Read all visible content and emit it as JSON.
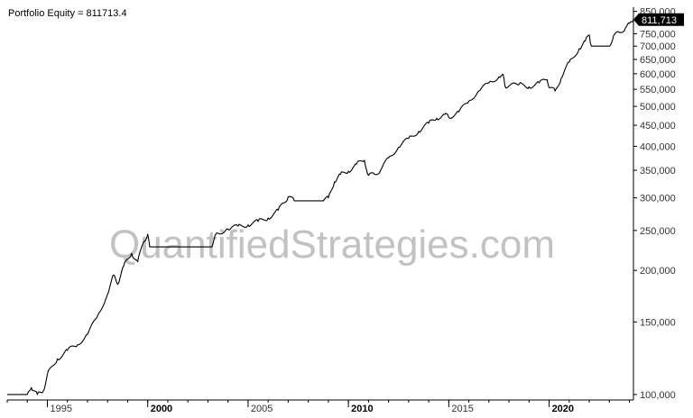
{
  "chart_data": {
    "type": "line",
    "title": "Portfolio Equity = 811713.4",
    "xlabel": "",
    "ylabel": "",
    "y_scale": "log",
    "ylim": [
      97000,
      870000
    ],
    "xlim": [
      1993.0,
      2024.2
    ],
    "x_ticks": [
      {
        "year": 1995,
        "label": "1995",
        "bold": false
      },
      {
        "year": 2000,
        "label": "2000",
        "bold": true
      },
      {
        "year": 2005,
        "label": "2005",
        "bold": false
      },
      {
        "year": 2010,
        "label": "2010",
        "bold": true
      },
      {
        "year": 2015,
        "label": "2015",
        "bold": false
      },
      {
        "year": 2020,
        "label": "2020",
        "bold": true
      }
    ],
    "y_ticks": [
      {
        "value": 100000,
        "label": "100,000"
      },
      {
        "value": 150000,
        "label": "150,000"
      },
      {
        "value": 200000,
        "label": "200,000"
      },
      {
        "value": 250000,
        "label": "250,000"
      },
      {
        "value": 300000,
        "label": "300,000"
      },
      {
        "value": 350000,
        "label": "350,000"
      },
      {
        "value": 400000,
        "label": "400,000"
      },
      {
        "value": 450000,
        "label": "450,000"
      },
      {
        "value": 500000,
        "label": "500,000"
      },
      {
        "value": 550000,
        "label": "550,000"
      },
      {
        "value": 600000,
        "label": "600,000"
      },
      {
        "value": 650000,
        "label": "650,000"
      },
      {
        "value": 700000,
        "label": "700,000"
      },
      {
        "value": 750000,
        "label": "750,000"
      },
      {
        "value": 850000,
        "label": "850,000"
      }
    ],
    "last_value": 811713.4,
    "last_value_label": "811,713",
    "series": [
      {
        "values": [
          [
            1993.0,
            100000
          ],
          [
            1993.6,
            100000
          ],
          [
            1994.0,
            100000
          ],
          [
            1994.2,
            104000
          ],
          [
            1994.5,
            100000
          ],
          [
            1994.8,
            102000
          ],
          [
            1995.0,
            112000
          ],
          [
            1995.5,
            122000
          ],
          [
            1996.0,
            128000
          ],
          [
            1996.5,
            132000
          ],
          [
            1997.0,
            140000
          ],
          [
            1997.5,
            155000
          ],
          [
            1998.0,
            175000
          ],
          [
            1998.3,
            195000
          ],
          [
            1998.5,
            185000
          ],
          [
            1998.8,
            205000
          ],
          [
            1999.2,
            220000
          ],
          [
            1999.5,
            210000
          ],
          [
            1999.8,
            235000
          ],
          [
            2000.0,
            245000
          ],
          [
            2000.1,
            228000
          ],
          [
            2003.2,
            228000
          ],
          [
            2003.4,
            245000
          ],
          [
            2004.0,
            252000
          ],
          [
            2004.5,
            256000
          ],
          [
            2005.0,
            258000
          ],
          [
            2005.5,
            263000
          ],
          [
            2006.0,
            268000
          ],
          [
            2006.5,
            280000
          ],
          [
            2006.8,
            292000
          ],
          [
            2007.0,
            302000
          ],
          [
            2007.3,
            295000
          ],
          [
            2008.7,
            295000
          ],
          [
            2009.0,
            300000
          ],
          [
            2009.3,
            328000
          ],
          [
            2009.6,
            342000
          ],
          [
            2010.0,
            348000
          ],
          [
            2010.4,
            362000
          ],
          [
            2010.8,
            370000
          ],
          [
            2011.0,
            340000
          ],
          [
            2011.3,
            342000
          ],
          [
            2011.6,
            350000
          ],
          [
            2012.0,
            375000
          ],
          [
            2012.5,
            398000
          ],
          [
            2013.0,
            418000
          ],
          [
            2013.5,
            435000
          ],
          [
            2014.0,
            455000
          ],
          [
            2014.4,
            468000
          ],
          [
            2014.8,
            478000
          ],
          [
            2015.0,
            470000
          ],
          [
            2015.5,
            485000
          ],
          [
            2016.0,
            515000
          ],
          [
            2016.5,
            545000
          ],
          [
            2017.0,
            570000
          ],
          [
            2017.5,
            590000
          ],
          [
            2017.7,
            598000
          ],
          [
            2017.8,
            560000
          ],
          [
            2018.5,
            565000
          ],
          [
            2019.0,
            558000
          ],
          [
            2019.5,
            570000
          ],
          [
            2019.9,
            580000
          ],
          [
            2020.0,
            555000
          ],
          [
            2020.3,
            545000
          ],
          [
            2020.6,
            585000
          ],
          [
            2021.0,
            640000
          ],
          [
            2021.5,
            690000
          ],
          [
            2021.8,
            720000
          ],
          [
            2022.0,
            745000
          ],
          [
            2022.1,
            700000
          ],
          [
            2023.0,
            700000
          ],
          [
            2023.2,
            740000
          ],
          [
            2023.5,
            755000
          ],
          [
            2023.8,
            775000
          ],
          [
            2024.0,
            795000
          ],
          [
            2024.2,
            811713
          ]
        ]
      }
    ],
    "colors": {
      "line": "#000000",
      "watermark": "#b8b8b8",
      "axis": "#000000",
      "last_value_bg": "#000000"
    }
  },
  "watermark": "QuantifiedStrategies.com"
}
